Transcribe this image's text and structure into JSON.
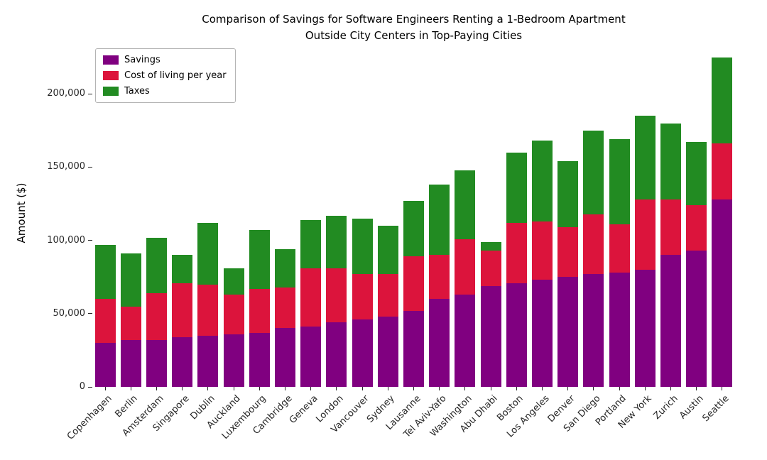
{
  "title": {
    "line1": "Comparison of Savings for Software Engineers Renting a 1-Bedroom Apartment",
    "line2": "Outside City Centers in Top-Paying Cities"
  },
  "chart_data": {
    "type": "bar",
    "stacked": true,
    "title": "Comparison of Savings for Software Engineers Renting a 1-Bedroom Apartment Outside City Centers in Top-Paying Cities",
    "xlabel": "",
    "ylabel": "Amount ($)",
    "grid": false,
    "legend_position": "upper left",
    "ylim": [
      0,
      236000
    ],
    "yticks": [
      0,
      50000,
      100000,
      150000,
      200000
    ],
    "ytick_labels": [
      "0",
      "50,000",
      "100,000",
      "150,000",
      "200,000"
    ],
    "categories": [
      "Copenhagen",
      "Berlin",
      "Amsterdam",
      "Singapore",
      "Dublin",
      "Auckland",
      "Luxembourg",
      "Cambridge",
      "Geneva",
      "London",
      "Vancouver",
      "Sydney",
      "Lausanne",
      "Tel Aviv-Yafo",
      "Washington",
      "Abu Dhabi",
      "Boston",
      "Los Angeles",
      "Denver",
      "San Diego",
      "Portland",
      "New York",
      "Zurich",
      "Austin",
      "Seattle"
    ],
    "series": [
      {
        "name": "Savings",
        "color": "#800080",
        "values": [
          30000,
          32000,
          32000,
          34000,
          35000,
          36000,
          37000,
          40000,
          41000,
          44000,
          46000,
          48000,
          52000,
          60000,
          63000,
          69000,
          71000,
          73000,
          75000,
          77000,
          78000,
          80000,
          90000,
          93000,
          128000
        ]
      },
      {
        "name": "Cost of living per year",
        "color": "#DC143C",
        "values": [
          30000,
          23000,
          32000,
          37000,
          35000,
          27000,
          30000,
          28000,
          40000,
          37000,
          31000,
          29000,
          37000,
          30000,
          38000,
          24000,
          41000,
          40000,
          34000,
          41000,
          33000,
          48000,
          38000,
          31000,
          38000
        ]
      },
      {
        "name": "Taxes",
        "color": "#228B22",
        "values": [
          37000,
          36000,
          38000,
          19000,
          42000,
          18000,
          40000,
          26000,
          33000,
          36000,
          38000,
          33000,
          38000,
          48000,
          47000,
          6000,
          48000,
          55000,
          45000,
          57000,
          58000,
          57000,
          52000,
          43000,
          59000
        ]
      }
    ]
  }
}
